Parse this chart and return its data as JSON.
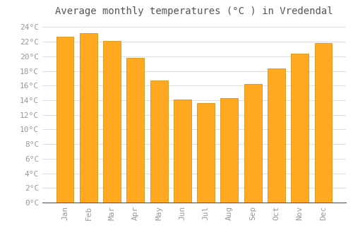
{
  "title": "Average monthly temperatures (°C ) in Vredendal",
  "months": [
    "Jan",
    "Feb",
    "Mar",
    "Apr",
    "May",
    "Jun",
    "Jul",
    "Aug",
    "Sep",
    "Oct",
    "Nov",
    "Dec"
  ],
  "values": [
    22.7,
    23.2,
    22.1,
    19.8,
    16.7,
    14.1,
    13.6,
    14.3,
    16.2,
    18.3,
    20.4,
    21.8
  ],
  "bar_color": "#FFA820",
  "bar_edge_color": "#CC8800",
  "background_color": "#FFFFFF",
  "grid_color": "#DDDDDD",
  "ylim": [
    0,
    25
  ],
  "yticks": [
    0,
    2,
    4,
    6,
    8,
    10,
    12,
    14,
    16,
    18,
    20,
    22,
    24
  ],
  "title_fontsize": 10,
  "tick_fontsize": 8,
  "tick_font_color": "#999999",
  "title_font_color": "#555555",
  "bar_width": 0.75
}
